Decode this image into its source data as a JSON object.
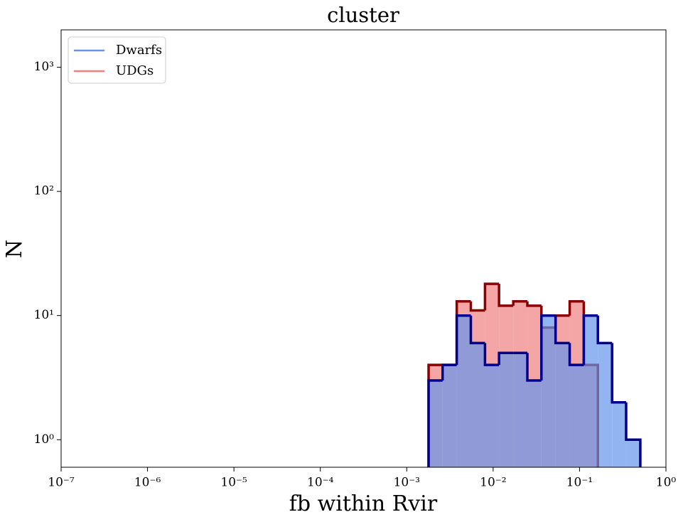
{
  "chart_data": {
    "type": "histogram",
    "title": "cluster",
    "xlabel": "fb within Rvir",
    "ylabel": "N",
    "bins": [
      0.00179,
      0.0026,
      0.00379,
      0.00552,
      0.00805,
      0.0117,
      0.0171,
      0.0249,
      0.0362,
      0.0528,
      0.0769,
      0.112,
      0.163,
      0.238,
      0.346,
      0.505
    ],
    "series": [
      {
        "name": "Dwarfs",
        "color": "#6495ed",
        "edgecolor": "#00008b",
        "values": [
          3,
          4,
          10,
          6,
          4,
          5,
          5,
          3,
          10,
          6,
          4,
          10,
          6,
          2,
          1
        ]
      },
      {
        "name": "UDGs",
        "color": "#f08080",
        "edgecolor": "#8b0000",
        "values": [
          4,
          4,
          13,
          11,
          18,
          12,
          13,
          12,
          8,
          10,
          13,
          4,
          0,
          0,
          0
        ]
      }
    ],
    "xscale": "log",
    "yscale": "log",
    "xlim": [
      1e-07,
      1
    ],
    "ylim": [
      0.6,
      2000
    ],
    "xticks": [
      {
        "value": 1e-07,
        "label": "10⁻⁷"
      },
      {
        "value": 1e-06,
        "label": "10⁻⁶"
      },
      {
        "value": 1e-05,
        "label": "10⁻⁵"
      },
      {
        "value": 0.0001,
        "label": "10⁻⁴"
      },
      {
        "value": 0.001,
        "label": "10⁻³"
      },
      {
        "value": 0.01,
        "label": "10⁻²"
      },
      {
        "value": 0.1,
        "label": "10⁻¹"
      },
      {
        "value": 1,
        "label": "10⁰"
      }
    ],
    "yticks": [
      {
        "value": 1,
        "label": "10⁰"
      },
      {
        "value": 10,
        "label": "10¹"
      },
      {
        "value": 100,
        "label": "10²"
      },
      {
        "value": 1000,
        "label": "10³"
      }
    ],
    "legend": "upper left",
    "grid": false
  }
}
